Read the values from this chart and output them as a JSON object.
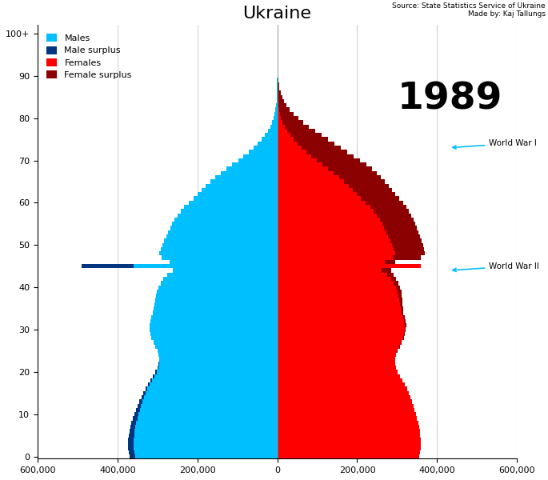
{
  "title": "Ukraine",
  "year": "1989",
  "source": "Source: State Statistics Service of Ukraine\nMade by: Kaj Tallungs",
  "ww1_label": "World War I",
  "ww2_label": "World War II",
  "ww1_age": 73,
  "ww2_age": 44,
  "xlim": [
    -600000,
    600000
  ],
  "ylim": [
    0,
    102
  ],
  "yticks": [
    0,
    10,
    20,
    30,
    40,
    50,
    60,
    70,
    80,
    90,
    100
  ],
  "ytick_labels": [
    "0",
    "10",
    "20",
    "30",
    "40",
    "50",
    "60",
    "70",
    "80",
    "90",
    "100+"
  ],
  "xticks": [
    -600000,
    -400000,
    -200000,
    0,
    200000,
    400000,
    600000
  ],
  "xtick_labels": [
    "600,000",
    "400,000",
    "200,000",
    "0",
    "200,000",
    "400,000",
    "600,000"
  ],
  "color_male": "#00BFFF",
  "color_male_surplus": "#003580",
  "color_female": "#FF0000",
  "color_female_surplus": "#8B0000",
  "males": [
    370000,
    372000,
    374000,
    374000,
    373000,
    372000,
    370000,
    368000,
    365000,
    362000,
    358000,
    354000,
    350000,
    345000,
    340000,
    335000,
    330000,
    324000,
    318000,
    312000,
    306000,
    300000,
    297000,
    296000,
    297000,
    300000,
    305000,
    310000,
    315000,
    318000,
    320000,
    320000,
    318000,
    315000,
    312000,
    310000,
    308000,
    306000,
    304000,
    302000,
    298000,
    292000,
    285000,
    275000,
    262000,
    490000,
    270000,
    290000,
    295000,
    292000,
    288000,
    283000,
    278000,
    273000,
    268000,
    263000,
    257000,
    250000,
    242000,
    233000,
    222000,
    210000,
    200000,
    190000,
    180000,
    168000,
    155000,
    142000,
    128000,
    113000,
    98000,
    85000,
    72000,
    60000,
    50000,
    40000,
    32000,
    24000,
    18000,
    13000,
    9000,
    6500,
    4500,
    3000,
    2000,
    1300,
    850,
    550,
    350,
    200,
    120,
    70,
    40,
    25,
    15,
    9,
    5,
    3,
    2,
    1,
    1
  ],
  "females": [
    355000,
    357000,
    359000,
    360000,
    359000,
    358000,
    357000,
    355000,
    353000,
    350000,
    347000,
    344000,
    341000,
    337000,
    333000,
    329000,
    325000,
    319000,
    313000,
    307000,
    302000,
    298000,
    296000,
    296000,
    298000,
    302000,
    307000,
    312000,
    317000,
    320000,
    322000,
    323000,
    321000,
    319000,
    316000,
    315000,
    314000,
    313000,
    312000,
    311000,
    308000,
    303000,
    298000,
    292000,
    285000,
    360000,
    295000,
    360000,
    370000,
    368000,
    365000,
    361000,
    357000,
    353000,
    349000,
    345000,
    341000,
    336000,
    330000,
    323000,
    315000,
    305000,
    296000,
    287000,
    279000,
    270000,
    260000,
    249000,
    237000,
    223000,
    208000,
    192000,
    176000,
    160000,
    143000,
    126000,
    110000,
    94000,
    79000,
    65000,
    52000,
    41000,
    31000,
    23000,
    17000,
    12000,
    8500,
    5800,
    3900,
    2600,
    1700,
    1100,
    700,
    430,
    260,
    150,
    90,
    50,
    30,
    15,
    8
  ]
}
